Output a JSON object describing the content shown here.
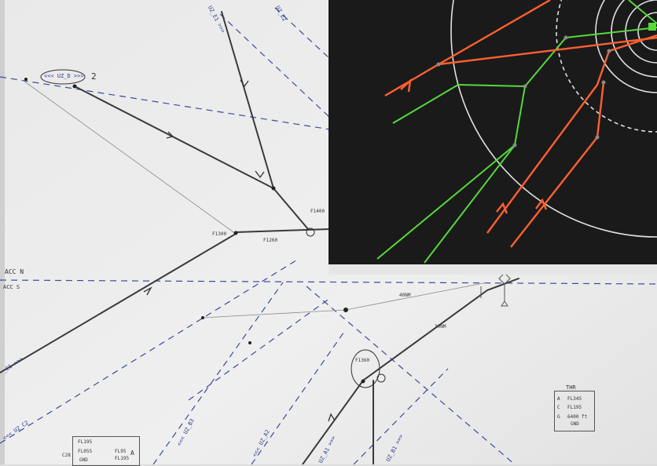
{
  "waypoints": {
    "d": "<<< UZ_D >>>",
    "d_note": "2",
    "e1": "UZ_E1 >>>",
    "e2": "UZ_E2",
    "c1": "_C1 >>>",
    "c2": "<<< UZ_C2",
    "b3": "<<< UZ_B3",
    "a2": "<<< UZ_A2",
    "a1": "UZ_A1 >>>",
    "b1": "UZ_B1 >>>"
  },
  "annotations": {
    "acc_n": "ACC N",
    "acc_s": "ACC S",
    "fl_a": "F1300",
    "fl_b": "F1260",
    "fl_c": "F1400",
    "fl_d": "F1360",
    "dist_a": "40NM",
    "dist_b": "30NM"
  },
  "thr_box": {
    "title": "THR",
    "rows": [
      {
        "key": "A",
        "value": "FL345"
      },
      {
        "key": "C",
        "value": "FL195"
      },
      {
        "key": "G",
        "value": "6400 ft"
      },
      {
        "key": "",
        "value": "GND"
      }
    ]
  },
  "bottom_box": {
    "prefix": "C28",
    "rows": [
      "FL195",
      "FL055",
      "GND"
    ],
    "side_a": "FL95",
    "side_b": "FL195",
    "letter": "A"
  },
  "colors": {
    "paper": "#ececec",
    "pencil": "#3a3a3a",
    "ink_blue": "#2b3a8c",
    "radar_bg": "#1a1a1a",
    "radar_green": "#55d93b",
    "radar_orange": "#ff6030",
    "radar_ring": "#e8e8e8"
  }
}
